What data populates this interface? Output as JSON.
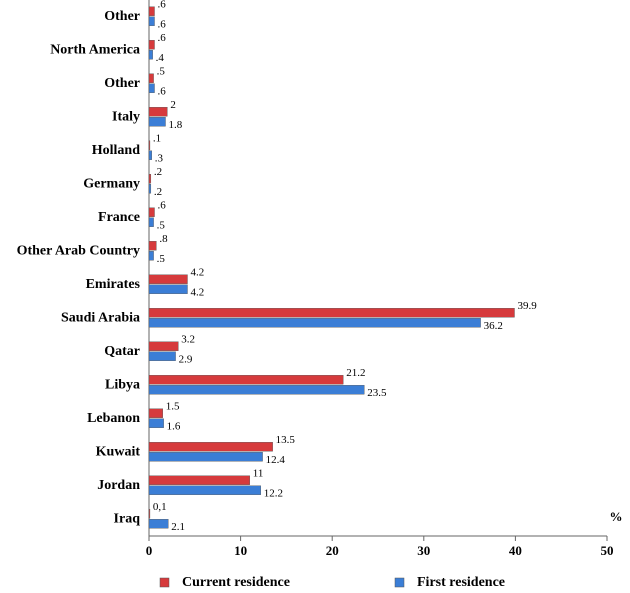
{
  "chart_data": {
    "type": "hbar",
    "categories": [
      "Other",
      "North America",
      "Other",
      "Italy",
      "Holland",
      "Germany",
      "France",
      "Other Arab Country",
      "Emirates",
      "Saudi  Arabia",
      "Qatar",
      "Libya",
      "Lebanon",
      "Kuwait",
      "Jordan",
      "Iraq"
    ],
    "series": [
      {
        "name": "Current residence",
        "color": "#d63a3c",
        "values": [
          0.6,
          0.6,
          0.5,
          2,
          0.1,
          0.2,
          0.6,
          0.8,
          4.2,
          39.9,
          3.2,
          21.2,
          1.5,
          13.5,
          11,
          0.1
        ],
        "value_labels": [
          ".6",
          ".6",
          ".5",
          "2",
          ".1",
          ".2",
          ".6",
          ".8",
          "4.2",
          "39.9",
          "3.2",
          "21.2",
          "1.5",
          "13.5",
          "11",
          "0,1"
        ]
      },
      {
        "name": "First residence",
        "color": "#3b7ed6",
        "values": [
          0.6,
          0.4,
          0.6,
          1.8,
          0.3,
          0.2,
          0.5,
          0.5,
          4.2,
          36.2,
          2.9,
          23.5,
          1.6,
          12.4,
          12.2,
          2.1
        ],
        "value_labels": [
          ".6",
          ".4",
          ".6",
          "1.8",
          ".3",
          ".2",
          ".5",
          ".5",
          "4.2",
          "36.2",
          "2.9",
          "23.5",
          "1.6",
          "12.4",
          "12.2",
          "2.1"
        ]
      }
    ],
    "x_axis_label": "%",
    "xlim": [
      0,
      50
    ],
    "xticks": [
      0,
      10,
      20,
      30,
      40,
      50
    ]
  }
}
